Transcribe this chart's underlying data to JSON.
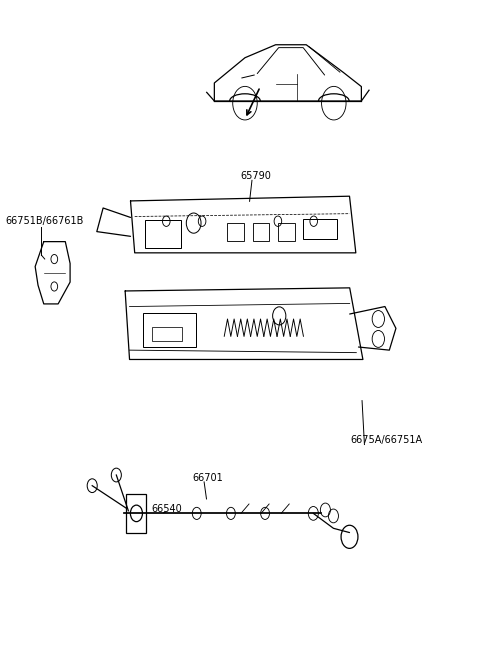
{
  "background_color": "#ffffff",
  "line_color": "#000000",
  "figsize": [
    4.8,
    6.57
  ],
  "dpi": 100,
  "labels": {
    "66751B_66761B": "66751B/66761B",
    "65790": "65790",
    "66701": "66701",
    "66540": "66540",
    "6675A_66751A": "6675A/66751A"
  }
}
